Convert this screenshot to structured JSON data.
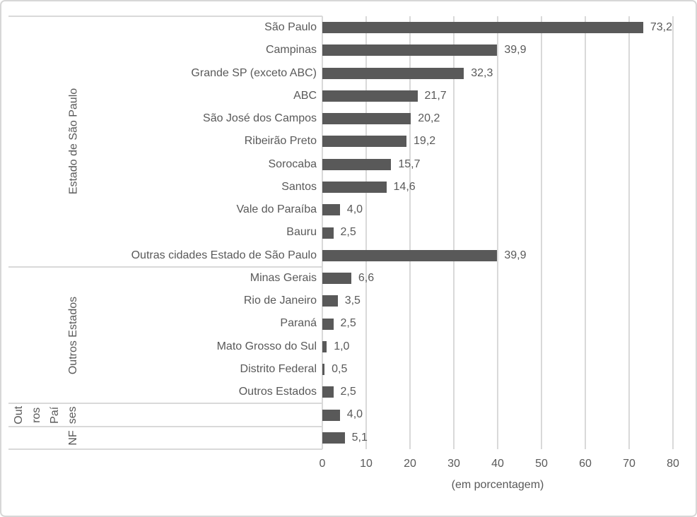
{
  "chart_data": {
    "type": "bar",
    "orientation": "horizontal",
    "xlabel": "(em porcentagem)",
    "xlim": [
      0,
      80
    ],
    "xticks": [
      "0",
      "10",
      "20",
      "30",
      "40",
      "50",
      "60",
      "70",
      "80"
    ],
    "grid": "vertical",
    "legend": "none",
    "bar_color": "#595959",
    "grid_color": "#d9d9d9",
    "text_color": "#595959",
    "groups": [
      {
        "label": "Estado de São Paulo",
        "items": [
          {
            "category": "São Paulo",
            "value": 73.2,
            "display": "73,2"
          },
          {
            "category": "Campinas",
            "value": 39.9,
            "display": "39,9"
          },
          {
            "category": "Grande SP (exceto ABC)",
            "value": 32.3,
            "display": "32,3"
          },
          {
            "category": "ABC",
            "value": 21.7,
            "display": "21,7"
          },
          {
            "category": "São José dos Campos",
            "value": 20.2,
            "display": "20,2"
          },
          {
            "category": "Ribeirão Preto",
            "value": 19.2,
            "display": "19,2"
          },
          {
            "category": "Sorocaba",
            "value": 15.7,
            "display": "15,7"
          },
          {
            "category": "Santos",
            "value": 14.6,
            "display": "14,6"
          },
          {
            "category": "Vale do Paraíba",
            "value": 4.0,
            "display": "4,0"
          },
          {
            "category": "Bauru",
            "value": 2.5,
            "display": "2,5"
          },
          {
            "category": "Outras cidades Estado de São Paulo",
            "value": 39.9,
            "display": "39,9"
          }
        ]
      },
      {
        "label": "Outros Estados",
        "items": [
          {
            "category": "Minas Gerais",
            "value": 6.6,
            "display": "6,6"
          },
          {
            "category": "Rio de Janeiro",
            "value": 3.5,
            "display": "3,5"
          },
          {
            "category": "Paraná",
            "value": 2.5,
            "display": "2,5"
          },
          {
            "category": "Mato Grosso do Sul",
            "value": 1.0,
            "display": "1,0"
          },
          {
            "category": "Distrito Federal",
            "value": 0.5,
            "display": "0,5"
          },
          {
            "category": "Outros Estados",
            "value": 2.5,
            "display": "2,5"
          }
        ]
      },
      {
        "label": "Outros Países",
        "label_display": "Out\nros\nPaí\nses",
        "items": [
          {
            "category": "",
            "value": 4.0,
            "display": "4,0"
          }
        ]
      },
      {
        "label": "NF",
        "items": [
          {
            "category": "",
            "value": 5.1,
            "display": "5,1"
          }
        ]
      }
    ]
  }
}
